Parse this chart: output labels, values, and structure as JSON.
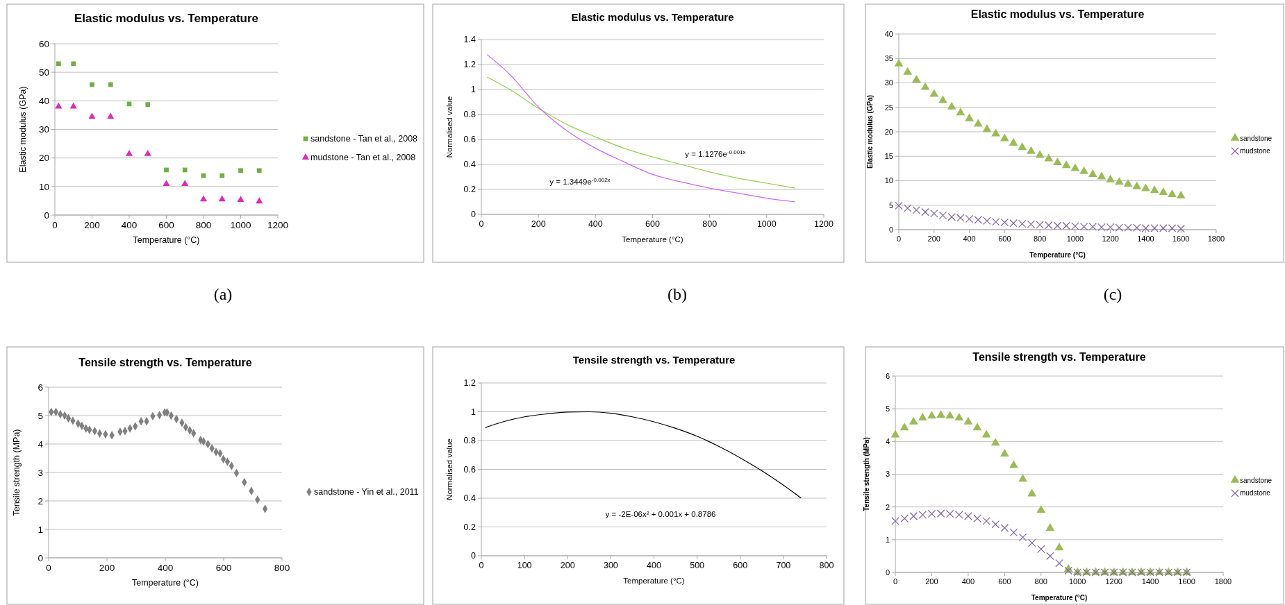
{
  "chart_data": [
    {
      "type": "scatter",
      "title": "Elastic modulus vs. Temperature",
      "xlabel": "Temperature  (°C)",
      "ylabel": "Elastic modulus (GPa)",
      "xlim": [
        0,
        1200
      ],
      "xticks": [
        0,
        200,
        400,
        600,
        800,
        1000,
        1200
      ],
      "ylim": [
        0,
        60
      ],
      "yticks": [
        0,
        10,
        20,
        30,
        40,
        50,
        60
      ],
      "grid": "y",
      "legend": "right",
      "x": [
        20,
        100,
        200,
        300,
        400,
        500,
        600,
        700,
        800,
        900,
        1000,
        1100
      ],
      "series": [
        {
          "name": "sandstone - Tan et al., 2008",
          "color": "#70ad47",
          "marker": "square",
          "values": [
            53,
            53,
            45.7,
            45.7,
            38.9,
            38.7,
            15.8,
            15.8,
            13.8,
            13.8,
            15.6,
            15.6
          ]
        },
        {
          "name": "mudstone - Tan et al., 2008",
          "color": "#d62fb4",
          "marker": "triangle",
          "values": [
            38,
            38,
            34.4,
            34.4,
            21.4,
            21.4,
            10.9,
            10.9,
            5.5,
            5.5,
            5.3,
            4.8
          ]
        }
      ],
      "annotations": [
        "(a)"
      ]
    },
    {
      "type": "line",
      "title": "Elastic modulus vs. Temperature",
      "xlabel": "Temperature  (°C)",
      "ylabel": "Normalised value",
      "xlim": [
        0,
        1200
      ],
      "xticks": [
        0,
        200,
        400,
        600,
        800,
        1000,
        1200
      ],
      "ylim": [
        0,
        1.4
      ],
      "yticks": [
        0,
        0.2,
        0.4,
        0.6,
        0.8,
        1,
        1.2,
        1.4
      ],
      "grid": "y",
      "x": [
        20,
        100,
        200,
        300,
        400,
        500,
        600,
        700,
        800,
        900,
        1000,
        1100
      ],
      "series": [
        {
          "color": "#92d050",
          "values": [
            1.1,
            1.0,
            0.85,
            0.72,
            0.62,
            0.53,
            0.46,
            0.4,
            0.34,
            0.29,
            0.25,
            0.21
          ]
        },
        {
          "color": "#cc66ff",
          "values": [
            1.28,
            1.12,
            0.86,
            0.67,
            0.53,
            0.42,
            0.32,
            0.26,
            0.21,
            0.17,
            0.13,
            0.1
          ]
        }
      ],
      "annotations": [
        "y = 1.1276e$^{-0.001x}$",
        "y = 1.3449e$^{-0.002x}$",
        "(b)"
      ]
    },
    {
      "type": "scatter",
      "title": "Elastic modulus vs. Temperature",
      "xlabel": "Temperature (°C)",
      "ylabel": "Elastic modulus  (GPa)",
      "xlim": [
        0,
        1800
      ],
      "xticks": [
        0,
        200,
        400,
        600,
        800,
        1000,
        1200,
        1400,
        1600,
        1800
      ],
      "ylim": [
        0,
        40
      ],
      "yticks": [
        0,
        5,
        10,
        15,
        20,
        25,
        30,
        35,
        40
      ],
      "grid": "y",
      "legend": "right",
      "x": [
        0,
        50,
        100,
        150,
        200,
        250,
        300,
        350,
        400,
        450,
        500,
        550,
        600,
        650,
        700,
        750,
        800,
        850,
        900,
        950,
        1000,
        1050,
        1100,
        1150,
        1200,
        1250,
        1300,
        1350,
        1400,
        1450,
        1500,
        1550,
        1600
      ],
      "series": [
        {
          "name": "sandstone",
          "color": "#9bbb59",
          "marker": "triangle",
          "values": [
            33.9,
            32.2,
            30.6,
            29.1,
            27.7,
            26.4,
            25.1,
            23.9,
            22.7,
            21.6,
            20.5,
            19.6,
            18.6,
            17.7,
            16.8,
            16.0,
            15.2,
            14.5,
            13.7,
            13.1,
            12.5,
            11.9,
            11.3,
            10.8,
            10.2,
            9.7,
            9.3,
            8.8,
            8.4,
            8.0,
            7.6,
            7.2,
            6.9
          ]
        },
        {
          "name": "mudstone",
          "color": "#8064a2",
          "marker": "cross",
          "values": [
            4.9,
            4.4,
            4.0,
            3.6,
            3.3,
            2.9,
            2.6,
            2.4,
            2.2,
            2.0,
            1.8,
            1.6,
            1.5,
            1.3,
            1.2,
            1.1,
            1.0,
            0.9,
            0.8,
            0.8,
            0.7,
            0.6,
            0.6,
            0.5,
            0.5,
            0.4,
            0.4,
            0.4,
            0.3,
            0.3,
            0.3,
            0.3,
            0.2
          ]
        }
      ],
      "annotations": [
        "(c)"
      ]
    },
    {
      "type": "scatter",
      "title": "Tensile strength vs. Temperature",
      "xlabel": "Temperature (°C)",
      "ylabel": "Tensile strength (MPa)",
      "xlim": [
        0,
        800
      ],
      "xticks": [
        0,
        200,
        400,
        600,
        800
      ],
      "ylim": [
        0,
        6
      ],
      "yticks": [
        0,
        1,
        2,
        3,
        4,
        5,
        6
      ],
      "grid": "y",
      "legend": "right",
      "x": [
        9,
        25,
        40,
        55,
        68,
        83,
        101,
        114,
        128,
        140,
        158,
        175,
        195,
        217,
        245,
        262,
        279,
        297,
        317,
        336,
        357,
        380,
        398,
        406,
        420,
        438,
        457,
        470,
        484,
        497,
        521,
        531,
        546,
        560,
        574,
        588,
        599,
        613,
        627,
        644,
        671,
        695,
        716,
        742
      ],
      "series": [
        {
          "name": "sandstone - Yin et al., 2011",
          "color": "#808080",
          "marker": "diamond",
          "values": [
            5.13,
            5.13,
            5.05,
            5.0,
            4.9,
            4.82,
            4.72,
            4.64,
            4.55,
            4.5,
            4.46,
            4.37,
            4.34,
            4.31,
            4.43,
            4.46,
            4.55,
            4.62,
            4.8,
            4.8,
            4.98,
            5.02,
            5.11,
            5.11,
            5.0,
            4.88,
            4.75,
            4.59,
            4.48,
            4.38,
            4.14,
            4.09,
            4.0,
            3.85,
            3.72,
            3.67,
            3.47,
            3.38,
            3.23,
            2.98,
            2.66,
            2.35,
            2.04,
            1.72
          ]
        }
      ]
    },
    {
      "type": "line",
      "title": "Tensile strength vs. Temperature",
      "xlabel": "Temperature (°C)",
      "ylabel": "Normalised value",
      "xlim": [
        0,
        800
      ],
      "xticks": [
        0,
        100,
        200,
        300,
        400,
        500,
        600,
        700,
        800
      ],
      "ylim": [
        0,
        1.2
      ],
      "yticks": [
        0,
        0.2,
        0.4,
        0.6,
        0.8,
        1,
        1.2
      ],
      "grid": "y",
      "x": [
        9,
        50,
        100,
        150,
        200,
        250,
        300,
        350,
        400,
        450,
        500,
        550,
        600,
        650,
        700,
        741
      ],
      "series": [
        {
          "color": "#000000",
          "values": [
            0.89,
            0.93,
            0.965,
            0.985,
            0.998,
            1.0,
            0.99,
            0.965,
            0.93,
            0.885,
            0.83,
            0.76,
            0.68,
            0.59,
            0.49,
            0.4
          ]
        }
      ],
      "annotations": [
        "y = -2E-06x² + 0.001x + 0.8786"
      ]
    },
    {
      "type": "scatter",
      "title": "Tensile strength vs. Temperature",
      "xlabel": "Temperature (°C)",
      "ylabel": "Tensile strength  (MPa)",
      "xlim": [
        0,
        1800
      ],
      "xticks": [
        0,
        200,
        400,
        600,
        800,
        1000,
        1200,
        1400,
        1600,
        1800
      ],
      "ylim": [
        0,
        6
      ],
      "yticks": [
        0,
        1,
        2,
        3,
        4,
        5,
        6
      ],
      "grid": "y",
      "legend": "right",
      "x": [
        0,
        50,
        100,
        150,
        200,
        250,
        300,
        350,
        400,
        450,
        500,
        550,
        600,
        650,
        700,
        750,
        800,
        850,
        900,
        950,
        1000,
        1050,
        1100,
        1150,
        1200,
        1250,
        1300,
        1350,
        1400,
        1450,
        1500,
        1550,
        1600
      ],
      "series": [
        {
          "name": "sandstone",
          "color": "#9bbb59",
          "marker": "triangle",
          "values": [
            4.2,
            4.42,
            4.6,
            4.72,
            4.78,
            4.8,
            4.78,
            4.72,
            4.6,
            4.42,
            4.2,
            3.95,
            3.62,
            3.27,
            2.85,
            2.4,
            1.9,
            1.35,
            0.75,
            0.1,
            0,
            0,
            0,
            0,
            0,
            0,
            0,
            0,
            0,
            0,
            0,
            0,
            0
          ]
        },
        {
          "name": "mudstone",
          "color": "#8064a2",
          "marker": "cross",
          "values": [
            1.57,
            1.65,
            1.72,
            1.76,
            1.79,
            1.8,
            1.79,
            1.76,
            1.72,
            1.65,
            1.57,
            1.47,
            1.36,
            1.22,
            1.07,
            0.9,
            0.71,
            0.5,
            0.28,
            0.05,
            0,
            0,
            0,
            0,
            0,
            0,
            0,
            0,
            0,
            0,
            0,
            0,
            0
          ]
        }
      ]
    }
  ]
}
